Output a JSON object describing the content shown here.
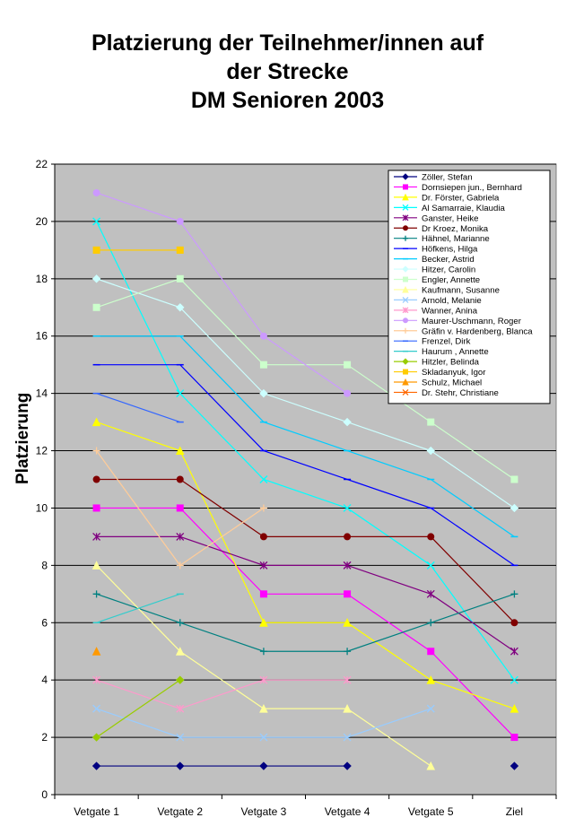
{
  "chart_data": {
    "type": "line",
    "title_lines": [
      "Platzierung der Teilnehmer/innen auf",
      "der Strecke",
      "DM Senioren 2003"
    ],
    "xlabel": "",
    "ylabel": "Platzierung",
    "categories": [
      "Vetgate 1",
      "Vetgate 2",
      "Vetgate 3",
      "Vetgate 4",
      "Vetgate 5",
      "Ziel"
    ],
    "ylim": [
      0,
      22
    ],
    "yticks": [
      0,
      2,
      4,
      6,
      8,
      10,
      12,
      14,
      16,
      18,
      20,
      22
    ],
    "grid": true,
    "legend_position": "top-right",
    "plot_background": "#c0c0c0",
    "series": [
      {
        "name": "Zöller, Stefan",
        "color": "#000080",
        "marker": "diamond",
        "values": [
          1,
          1,
          1,
          1,
          null,
          1
        ]
      },
      {
        "name": "Dornsiepen jun., Bernhard",
        "color": "#ff00ff",
        "marker": "square",
        "values": [
          10,
          10,
          7,
          7,
          5,
          2
        ]
      },
      {
        "name": "Dr. Förster, Gabriela",
        "color": "#ffff00",
        "marker": "triangle",
        "values": [
          13,
          12,
          6,
          6,
          4,
          3
        ]
      },
      {
        "name": "Al Samarraie, Klaudia",
        "color": "#00ffff",
        "marker": "x",
        "values": [
          20,
          14,
          11,
          10,
          8,
          4
        ]
      },
      {
        "name": "Ganster, Heike",
        "color": "#800080",
        "marker": "star",
        "values": [
          9,
          9,
          8,
          8,
          7,
          5
        ]
      },
      {
        "name": "Dr Kroez, Monika",
        "color": "#800000",
        "marker": "circle",
        "values": [
          11,
          11,
          9,
          9,
          9,
          6
        ]
      },
      {
        "name": "Hähnel, Marianne",
        "color": "#008080",
        "marker": "plus",
        "values": [
          7,
          6,
          5,
          5,
          6,
          7
        ]
      },
      {
        "name": "Höfkens, Hilga",
        "color": "#0000ff",
        "marker": "dash",
        "values": [
          15,
          15,
          12,
          11,
          10,
          8
        ]
      },
      {
        "name": "Becker, Astrid",
        "color": "#00ccff",
        "marker": "dash",
        "values": [
          16,
          16,
          13,
          12,
          11,
          9
        ]
      },
      {
        "name": "Hitzer, Carolin",
        "color": "#ccffff",
        "marker": "diamond",
        "values": [
          18,
          17,
          14,
          13,
          12,
          10
        ]
      },
      {
        "name": "Engler, Annette",
        "color": "#ccffcc",
        "marker": "square",
        "values": [
          17,
          18,
          15,
          15,
          13,
          11
        ]
      },
      {
        "name": "Kaufmann, Susanne",
        "color": "#ffff99",
        "marker": "triangle",
        "values": [
          8,
          5,
          3,
          3,
          1,
          null
        ]
      },
      {
        "name": "Arnold, Melanie",
        "color": "#99ccff",
        "marker": "x",
        "values": [
          3,
          2,
          2,
          2,
          3,
          null
        ]
      },
      {
        "name": "Wanner, Anina",
        "color": "#ff99cc",
        "marker": "star",
        "values": [
          4,
          3,
          4,
          4,
          null,
          null
        ]
      },
      {
        "name": "Maurer-Uschmann, Roger",
        "color": "#cc99ff",
        "marker": "circle",
        "values": [
          21,
          20,
          16,
          14,
          null,
          null
        ]
      },
      {
        "name": "Gräfin v. Hardenberg, Blanca",
        "color": "#ffcc99",
        "marker": "plus",
        "values": [
          12,
          8,
          10,
          null,
          null,
          null
        ]
      },
      {
        "name": "Frenzel, Dirk",
        "color": "#3366ff",
        "marker": "dash",
        "values": [
          14,
          13,
          null,
          null,
          null,
          null
        ]
      },
      {
        "name": "Haurum , Annette",
        "color": "#33cccc",
        "marker": "dash",
        "values": [
          6,
          7,
          null,
          null,
          null,
          null
        ]
      },
      {
        "name": "Hitzler, Belinda",
        "color": "#99cc00",
        "marker": "diamond",
        "values": [
          2,
          4,
          null,
          null,
          null,
          null
        ]
      },
      {
        "name": "Skladanyuk, Igor",
        "color": "#ffcc00",
        "marker": "square",
        "values": [
          19,
          19,
          null,
          null,
          null,
          null
        ]
      },
      {
        "name": "Schulz, Michael",
        "color": "#ff9900",
        "marker": "triangle",
        "values": [
          5,
          null,
          null,
          null,
          null,
          null
        ]
      },
      {
        "name": "Dr. Stehr, Christiane",
        "color": "#ff6600",
        "marker": "x",
        "values": [
          null,
          null,
          null,
          null,
          null,
          null
        ]
      }
    ]
  }
}
